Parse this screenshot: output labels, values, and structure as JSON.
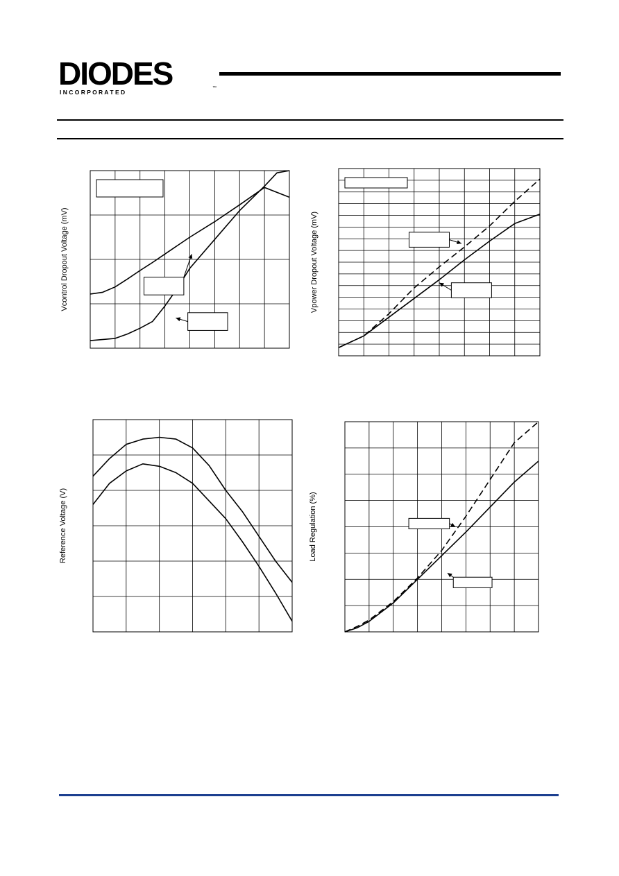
{
  "header": {
    "logo_text": "DIODES",
    "logo_subtext": "I N C O R P O R A T E D",
    "logo_mark": "™"
  },
  "colors": {
    "ink": "#000000",
    "footer_rule": "#1c3f8f"
  },
  "chart_data": [
    {
      "id": "chart-1",
      "type": "line",
      "ylabel": "Vcontrol  Dropout  Voltage (mV)",
      "xlim": [
        0,
        8
      ],
      "ylim": [
        0,
        4
      ],
      "grid": true,
      "legend_box": true,
      "series": [
        {
          "style": "solid",
          "x": [
            0,
            0.5,
            1,
            1.5,
            2,
            2.5,
            3,
            4,
            5,
            6,
            7,
            8
          ],
          "y": [
            1.22,
            1.26,
            1.38,
            1.56,
            1.75,
            1.93,
            2.12,
            2.5,
            2.85,
            3.23,
            3.62,
            3.4
          ]
        },
        {
          "style": "solid",
          "x": [
            0,
            1,
            1.5,
            2,
            2.5,
            3,
            3.5,
            4,
            5,
            6,
            7,
            7.5,
            8
          ],
          "y": [
            0.17,
            0.22,
            0.32,
            0.45,
            0.6,
            0.95,
            1.35,
            1.8,
            2.45,
            3.1,
            3.65,
            3.95,
            4.0
          ]
        }
      ],
      "callouts": [
        {
          "box": [
            0.27,
            0.6,
            0.47,
            0.7
          ],
          "arrow_to": [
            0.51,
            0.47
          ]
        },
        {
          "box": [
            0.49,
            0.8,
            0.69,
            0.9
          ],
          "arrow_to": [
            0.43,
            0.83
          ]
        }
      ]
    },
    {
      "id": "chart-2",
      "type": "line",
      "ylabel": "Vpower  Dropout  Voltage (mV)",
      "xlim": [
        0,
        8
      ],
      "ylim": [
        0,
        16
      ],
      "grid": true,
      "legend_box": true,
      "series": [
        {
          "style": "dashed",
          "x": [
            0,
            1,
            2,
            3,
            4,
            5,
            6,
            7,
            8
          ],
          "y": [
            0.7,
            1.7,
            3.6,
            5.8,
            7.6,
            9.3,
            11.1,
            13.2,
            15.1
          ]
        },
        {
          "style": "solid",
          "x": [
            0,
            1,
            2,
            3,
            4,
            5,
            6,
            7,
            8
          ],
          "y": [
            0.7,
            1.7,
            3.3,
            4.9,
            6.5,
            8.2,
            9.8,
            11.3,
            12.1
          ]
        }
      ],
      "callouts": [
        {
          "box": [
            0.35,
            0.34,
            0.55,
            0.42
          ],
          "arrow_to": [
            0.61,
            0.4
          ]
        },
        {
          "box": [
            0.56,
            0.61,
            0.76,
            0.69
          ],
          "arrow_to": [
            0.5,
            0.61
          ]
        }
      ]
    },
    {
      "id": "chart-3",
      "type": "line",
      "ylabel": "Reference Voltage (V)",
      "xlim": [
        0,
        6
      ],
      "ylim": [
        0,
        6
      ],
      "grid": true,
      "series": [
        {
          "style": "solid",
          "x": [
            0,
            0.5,
            1,
            1.5,
            2,
            2.5,
            3,
            3.5,
            4,
            4.5,
            5,
            5.5,
            6
          ],
          "y": [
            4.4,
            4.9,
            5.3,
            5.45,
            5.5,
            5.45,
            5.2,
            4.7,
            4.0,
            3.4,
            2.7,
            2.0,
            1.4
          ]
        },
        {
          "style": "solid",
          "x": [
            0,
            0.5,
            1,
            1.5,
            2,
            2.5,
            3,
            3.5,
            4,
            4.5,
            5,
            5.5,
            6
          ],
          "y": [
            3.6,
            4.2,
            4.55,
            4.75,
            4.68,
            4.5,
            4.2,
            3.7,
            3.2,
            2.55,
            1.85,
            1.1,
            0.3
          ]
        }
      ]
    },
    {
      "id": "chart-4",
      "type": "line",
      "ylabel": "Load Regulation (%)",
      "xlim": [
        0,
        8
      ],
      "ylim": [
        0,
        8
      ],
      "grid": true,
      "series": [
        {
          "style": "dashed",
          "x": [
            0,
            0.5,
            1,
            1.5,
            2,
            3,
            4,
            5,
            6,
            7,
            8
          ],
          "y": [
            0,
            0.2,
            0.45,
            0.8,
            1.15,
            2.05,
            3.1,
            4.4,
            5.8,
            7.2,
            8
          ]
        },
        {
          "style": "solid",
          "x": [
            0,
            0.5,
            1,
            1.5,
            2,
            3,
            4,
            5,
            6,
            7,
            8
          ],
          "y": [
            0,
            0.15,
            0.4,
            0.75,
            1.1,
            2.0,
            2.9,
            3.8,
            4.75,
            5.7,
            6.5
          ]
        }
      ],
      "callouts": [
        {
          "box": [
            0.33,
            0.46,
            0.54,
            0.51
          ],
          "arrow_to": [
            0.57,
            0.5
          ]
        },
        {
          "box": [
            0.56,
            0.74,
            0.76,
            0.79
          ],
          "arrow_to": [
            0.53,
            0.72
          ]
        }
      ]
    }
  ]
}
